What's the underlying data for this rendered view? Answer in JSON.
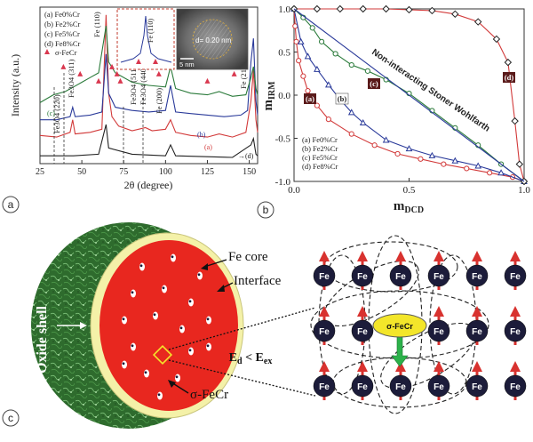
{
  "chart_data": [
    {
      "panel": "a",
      "type": "line",
      "xlabel": "2θ (degree)",
      "ylabel": "Intensity (a.u.)",
      "xlim": [
        25,
        155
      ],
      "x_ticks": [
        "25",
        "50",
        "75",
        "100",
        "125",
        "150"
      ],
      "legend": [
        "(a) Fe0%Cr",
        "(b) Fe2%Cr",
        "(c) Fe5%Cr",
        "(d) Fe8%Cr",
        "σ-FeCr"
      ],
      "peak_labels": [
        "Fe3O4 (220)",
        "Fe3O4 (311)",
        "Fe (110)",
        "Fe3O4 (511)",
        "Fe3O4 (440)",
        "Fe (200)",
        "Fe (211)"
      ],
      "inset": {
        "peak_label": "Fe (110)",
        "tem_label": "d= 0.20 nm",
        "scale_bar": "5 nm"
      },
      "series": [
        {
          "name": "(a)",
          "color": "#d23a3a",
          "points": [
            [
              25,
              0.18
            ],
            [
              35,
              0.17
            ],
            [
              43,
              0.2
            ],
            [
              44.5,
              0.28
            ],
            [
              46,
              0.19
            ],
            [
              55,
              0.2
            ],
            [
              62,
              0.22
            ],
            [
              64.5,
              0.95
            ],
            [
              66,
              0.45
            ],
            [
              68,
              0.3
            ],
            [
              72,
              0.24
            ],
            [
              80,
              0.21
            ],
            [
              88,
              0.23
            ],
            [
              92,
              0.21
            ],
            [
              100,
              0.22
            ],
            [
              103,
              0.28
            ],
            [
              106,
              0.2
            ],
            [
              115,
              0.18
            ],
            [
              125,
              0.17
            ],
            [
              132,
              0.19
            ],
            [
              140,
              0.17
            ],
            [
              148,
              0.2
            ],
            [
              151,
              0.4
            ],
            [
              152.5,
              0.6
            ],
            [
              154,
              0.28
            ],
            [
              155,
              0.2
            ]
          ]
        },
        {
          "name": "(b)",
          "color": "#2a3a9a",
          "points": [
            [
              25,
              0.28
            ],
            [
              35,
              0.28
            ],
            [
              43,
              0.3
            ],
            [
              44.5,
              0.36
            ],
            [
              46,
              0.3
            ],
            [
              55,
              0.31
            ],
            [
              62,
              0.33
            ],
            [
              64.5,
              0.7
            ],
            [
              66,
              0.45
            ],
            [
              70,
              0.36
            ],
            [
              80,
              0.34
            ],
            [
              90,
              0.33
            ],
            [
              100,
              0.34
            ],
            [
              103,
              0.5
            ],
            [
              106,
              0.33
            ],
            [
              115,
              0.32
            ],
            [
              125,
              0.31
            ],
            [
              135,
              0.3
            ],
            [
              145,
              0.31
            ],
            [
              149,
              0.34
            ],
            [
              151,
              0.65
            ],
            [
              152.5,
              0.8
            ],
            [
              154,
              0.4
            ],
            [
              155,
              0.31
            ]
          ]
        },
        {
          "name": "(c)",
          "color": "#2a7a3a",
          "points": [
            [
              25,
              0.39
            ],
            [
              33,
              0.44
            ],
            [
              40,
              0.46
            ],
            [
              45,
              0.49
            ],
            [
              50,
              0.52
            ],
            [
              55,
              0.55
            ],
            [
              60,
              0.58
            ],
            [
              64.5,
              0.88
            ],
            [
              66,
              0.65
            ],
            [
              70,
              0.58
            ],
            [
              80,
              0.52
            ],
            [
              90,
              0.5
            ],
            [
              100,
              0.49
            ],
            [
              103,
              0.62
            ],
            [
              106,
              0.48
            ],
            [
              115,
              0.45
            ],
            [
              125,
              0.44
            ],
            [
              132,
              0.46
            ],
            [
              140,
              0.43
            ],
            [
              148,
              0.44
            ],
            [
              151,
              0.55
            ],
            [
              152.5,
              0.62
            ],
            [
              154,
              0.48
            ],
            [
              155,
              0.44
            ]
          ]
        },
        {
          "name": "(d)",
          "color": "#222222",
          "points": [
            [
              25,
              0.05
            ],
            [
              45,
              0.05
            ],
            [
              60,
              0.06
            ],
            [
              64.5,
              0.25
            ],
            [
              66,
              0.1
            ],
            [
              80,
              0.06
            ],
            [
              100,
              0.05
            ],
            [
              103,
              0.12
            ],
            [
              106,
              0.05
            ],
            [
              140,
              0.04
            ],
            [
              151,
              0.12
            ],
            [
              152.5,
              0.16
            ],
            [
              154,
              0.06
            ],
            [
              155,
              0.05
            ]
          ]
        }
      ],
      "sigma_markers_x": [
        39,
        49,
        60,
        68,
        71,
        73,
        93,
        96,
        125,
        131,
        141
      ]
    },
    {
      "panel": "b",
      "type": "line",
      "xlabel": "mDCD",
      "ylabel": "mIRM",
      "xlim": [
        0,
        1
      ],
      "ylim": [
        -1,
        1
      ],
      "x_ticks": [
        "0.0",
        "0.5",
        "1.0"
      ],
      "y_ticks": [
        "1.0",
        "0.5",
        "0.0",
        "-0.5",
        "-1.0"
      ],
      "annotation": "Non-interacting Stoner Wohlfarth",
      "legend": [
        "(a) Fe0%Cr",
        "(b) Fe2%Cr",
        "(c) Fe5%Cr",
        "(d) Fe8%Cr"
      ],
      "series": [
        {
          "name": "(a)",
          "color": "#d23a3a",
          "marker": "circle",
          "points": [
            [
              0.0,
              1.0
            ],
            [
              0.005,
              0.8
            ],
            [
              0.01,
              0.62
            ],
            [
              0.02,
              0.4
            ],
            [
              0.04,
              0.22
            ],
            [
              0.06,
              0.05
            ],
            [
              0.1,
              -0.12
            ],
            [
              0.15,
              -0.28
            ],
            [
              0.25,
              -0.45
            ],
            [
              0.35,
              -0.58
            ],
            [
              0.45,
              -0.68
            ],
            [
              0.55,
              -0.74
            ],
            [
              0.65,
              -0.8
            ],
            [
              0.75,
              -0.85
            ],
            [
              0.85,
              -0.9
            ],
            [
              0.95,
              -0.95
            ],
            [
              1.0,
              -1.0
            ]
          ]
        },
        {
          "name": "(b)",
          "color": "#2a3a9a",
          "marker": "triangle",
          "points": [
            [
              0.0,
              1.0
            ],
            [
              0.03,
              0.62
            ],
            [
              0.06,
              0.45
            ],
            [
              0.1,
              0.3
            ],
            [
              0.15,
              0.12
            ],
            [
              0.2,
              -0.05
            ],
            [
              0.25,
              -0.2
            ],
            [
              0.3,
              -0.32
            ],
            [
              0.4,
              -0.52
            ],
            [
              0.5,
              -0.62
            ],
            [
              0.6,
              -0.7
            ],
            [
              0.7,
              -0.76
            ],
            [
              0.8,
              -0.82
            ],
            [
              0.9,
              -0.9
            ],
            [
              1.0,
              -1.0
            ]
          ]
        },
        {
          "name": "(c)",
          "color": "#2a7a3a",
          "marker": "circle-open",
          "points": [
            [
              0.0,
              1.0
            ],
            [
              0.04,
              0.9
            ],
            [
              0.08,
              0.78
            ],
            [
              0.12,
              0.62
            ],
            [
              0.18,
              0.48
            ],
            [
              0.25,
              0.35
            ],
            [
              0.32,
              0.28
            ],
            [
              0.4,
              0.18
            ],
            [
              0.5,
              0.02
            ],
            [
              0.6,
              -0.18
            ],
            [
              0.7,
              -0.38
            ],
            [
              0.8,
              -0.58
            ],
            [
              0.9,
              -0.8
            ],
            [
              1.0,
              -1.0
            ]
          ]
        },
        {
          "name": "(d)",
          "color": "#d23a3a",
          "marker": "diamond",
          "points": [
            [
              0.0,
              1.0
            ],
            [
              0.1,
              1.0
            ],
            [
              0.2,
              1.0
            ],
            [
              0.3,
              1.0
            ],
            [
              0.4,
              1.0
            ],
            [
              0.5,
              0.99
            ],
            [
              0.6,
              0.98
            ],
            [
              0.7,
              0.94
            ],
            [
              0.8,
              0.85
            ],
            [
              0.88,
              0.65
            ],
            [
              0.93,
              0.38
            ],
            [
              0.96,
              -0.3
            ],
            [
              0.98,
              -0.8
            ],
            [
              1.0,
              -1.0
            ]
          ]
        },
        {
          "name": "SW",
          "color": "#2a3a9a",
          "marker": "none",
          "points": [
            [
              0.0,
              1.0
            ],
            [
              1.0,
              -1.0
            ]
          ]
        }
      ]
    }
  ],
  "panel_letters": [
    "a",
    "b",
    "c"
  ],
  "schematic": {
    "labels": [
      "Fe core",
      "Interface",
      "Oxide shell",
      "σ-FeCr"
    ],
    "energy_lhs": "E",
    "energy_lhs_sub": "d",
    "energy_rel": " < ",
    "energy_rhs": "E",
    "energy_rhs_sub": "ex",
    "atom_label": "Fe",
    "center_label": "σ-FeCr",
    "colors": {
      "core": "#e8271f",
      "interface": "#f4f1a8",
      "shell": "#2d6a2c",
      "atom": "#1c1c3a",
      "arrow": "#d8322f",
      "center": "#f3e62a",
      "green_arrow": "#2bb14a"
    }
  }
}
